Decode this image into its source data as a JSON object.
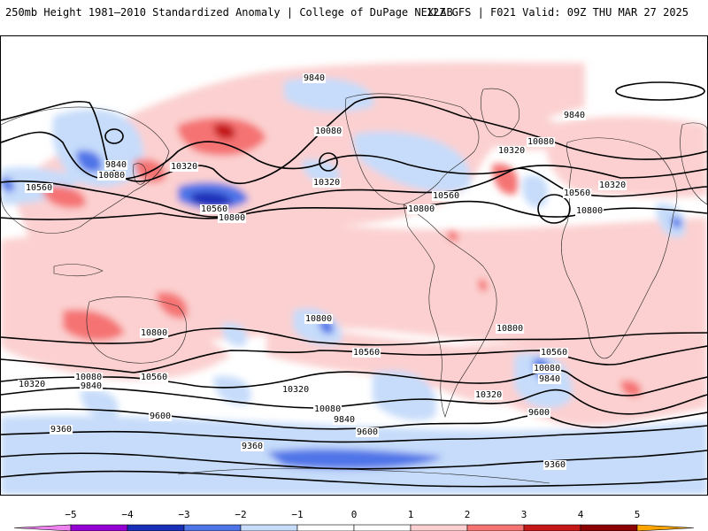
{
  "header": {
    "title_left": "250mb Height 1981–2010 Standardized Anomaly | College of DuPage NEXLAB",
    "title_right": "12Z GFS | F021 Valid: 09Z THU MAR 27 2025"
  },
  "map": {
    "contour_labels": [
      "9840",
      "9840",
      "9840",
      "10080",
      "10080",
      "10080",
      "10080",
      "10320",
      "10320",
      "10320",
      "10320",
      "10560",
      "10560",
      "10560",
      "10560",
      "10800",
      "10800",
      "10800",
      "10800",
      "10800",
      "10320",
      "10080",
      "9840",
      "10560",
      "10800",
      "10560",
      "10320",
      "10080",
      "9840",
      "9600",
      "9360",
      "9360",
      "9360",
      "9600",
      "10560",
      "10080",
      "9840",
      "10320",
      "9600"
    ],
    "colors": {
      "neg5": "#ee82ee",
      "neg4": "#9400d3",
      "neg3": "#1a2fb8",
      "neg2": "#4f74e8",
      "neg1": "#c6dcfa",
      "zero": "#ffffff",
      "pos1": "#fcd0d0",
      "pos2": "#f57373",
      "pos3": "#c41717",
      "pos4": "#8b0000",
      "pos5": "#ffa500"
    }
  },
  "colorbar": {
    "ticks": [
      "−5",
      "−4",
      "−3",
      "−2",
      "−1",
      "0",
      "1",
      "2",
      "3",
      "4",
      "5"
    ],
    "colors": [
      "#ee82ee",
      "#9400d3",
      "#1a2fb8",
      "#4f74e8",
      "#c6dcfa",
      "#ffffff",
      "#ffffff",
      "#fcd0d0",
      "#f57373",
      "#c41717",
      "#8b0000",
      "#ffa500"
    ]
  }
}
